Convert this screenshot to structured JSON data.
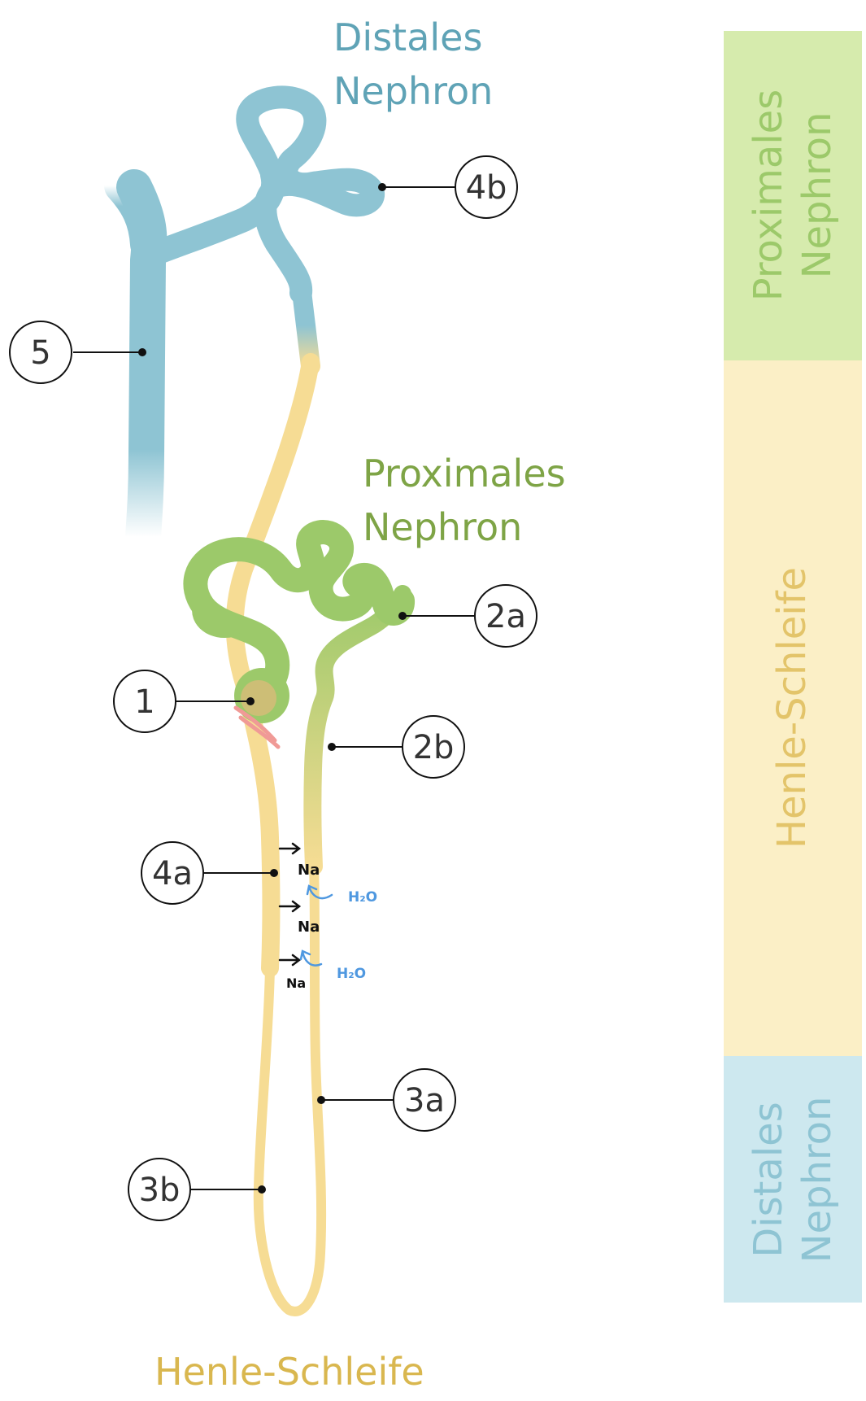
{
  "colors": {
    "distal": "#8ec4d3",
    "distal_text": "#5fa3b6",
    "proximal": "#9cc96a",
    "proximal_text": "#7ea446",
    "henle": "#f6dc94",
    "henle_text": "#d9b74f",
    "band_proximal": "#d6ebad",
    "band_henle": "#fbefc6",
    "band_distal": "#cde8ef",
    "glomerulus_vessel": "#f09a96",
    "water_annotation": "#4f98e0"
  },
  "labels": {
    "distal_title": [
      "Distales",
      "Nephron"
    ],
    "proximal_title": [
      "Proximales",
      "Nephron"
    ],
    "henle_title": "Henle-Schleife"
  },
  "callouts": {
    "c5": "5",
    "c4b": "4b",
    "c2a": "2a",
    "c1": "1",
    "c2b": "2b",
    "c4a": "4a",
    "c3a": "3a",
    "c3b": "3b"
  },
  "annotations": {
    "sodium": [
      "Na",
      "Na",
      "Na"
    ],
    "water": [
      "H₂O",
      "H₂O"
    ]
  },
  "side_bar": {
    "proximal": [
      "Proximales",
      "Nephron"
    ],
    "henle": "Henle-Schleife",
    "distal": [
      "Distales",
      "Nephron"
    ]
  }
}
